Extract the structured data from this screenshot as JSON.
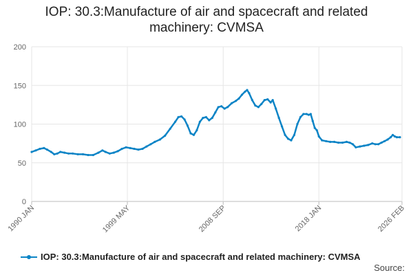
{
  "chart_data": {
    "type": "line",
    "title": "IOP: 30.3:Manufacture of air and spacecraft and related machinery: CVMSA",
    "xlabel": "",
    "ylabel": "",
    "ylim": [
      0,
      200
    ],
    "y_ticks": [
      0,
      50,
      100,
      150,
      200
    ],
    "x_range": [
      1990.0,
      2026.1
    ],
    "x_ticks": [
      {
        "label": "1990 JAN",
        "x": 1990.0
      },
      {
        "label": "1999 MAY",
        "x": 1999.33
      },
      {
        "label": "2008 SEP",
        "x": 2008.67
      },
      {
        "label": "2018 JAN",
        "x": 2018.0
      },
      {
        "label": "2026 FEB",
        "x": 2026.1
      }
    ],
    "grid": true,
    "legend": "bottom",
    "series": [
      {
        "name": "IOP: 30.3:Manufacture of air and spacecraft and related machinery: CVMSA",
        "color": "#0c84c6",
        "points": [
          [
            1990.0,
            64
          ],
          [
            1990.4,
            66
          ],
          [
            1990.8,
            68
          ],
          [
            1991.2,
            69
          ],
          [
            1991.5,
            67
          ],
          [
            1991.9,
            64
          ],
          [
            1992.2,
            61
          ],
          [
            1992.5,
            62
          ],
          [
            1992.8,
            64
          ],
          [
            1993.2,
            63
          ],
          [
            1993.6,
            62
          ],
          [
            1994.0,
            62
          ],
          [
            1994.5,
            61
          ],
          [
            1995.0,
            61
          ],
          [
            1995.5,
            60
          ],
          [
            1996.0,
            60
          ],
          [
            1996.5,
            63
          ],
          [
            1996.9,
            66
          ],
          [
            1997.2,
            64
          ],
          [
            1997.6,
            62
          ],
          [
            1998.0,
            63
          ],
          [
            1998.4,
            65
          ],
          [
            1998.8,
            68
          ],
          [
            1999.2,
            70
          ],
          [
            1999.6,
            69
          ],
          [
            2000.0,
            68
          ],
          [
            2000.4,
            67
          ],
          [
            2000.8,
            68
          ],
          [
            2001.2,
            71
          ],
          [
            2001.6,
            74
          ],
          [
            2002.0,
            77
          ],
          [
            2002.5,
            80
          ],
          [
            2003.0,
            85
          ],
          [
            2003.5,
            94
          ],
          [
            2004.0,
            103
          ],
          [
            2004.3,
            109
          ],
          [
            2004.6,
            110
          ],
          [
            2004.9,
            106
          ],
          [
            2005.2,
            98
          ],
          [
            2005.5,
            88
          ],
          [
            2005.8,
            86
          ],
          [
            2006.1,
            92
          ],
          [
            2006.4,
            103
          ],
          [
            2006.7,
            108
          ],
          [
            2007.0,
            109
          ],
          [
            2007.3,
            105
          ],
          [
            2007.6,
            108
          ],
          [
            2007.9,
            115
          ],
          [
            2008.2,
            122
          ],
          [
            2008.5,
            123
          ],
          [
            2008.8,
            120
          ],
          [
            2009.1,
            122
          ],
          [
            2009.5,
            127
          ],
          [
            2009.9,
            130
          ],
          [
            2010.2,
            133
          ],
          [
            2010.5,
            138
          ],
          [
            2010.8,
            142
          ],
          [
            2011.0,
            144
          ],
          [
            2011.2,
            140
          ],
          [
            2011.5,
            131
          ],
          [
            2011.8,
            124
          ],
          [
            2012.1,
            122
          ],
          [
            2012.4,
            126
          ],
          [
            2012.7,
            131
          ],
          [
            2013.0,
            132
          ],
          [
            2013.3,
            128
          ],
          [
            2013.5,
            131
          ],
          [
            2013.8,
            120
          ],
          [
            2014.1,
            108
          ],
          [
            2014.4,
            97
          ],
          [
            2014.7,
            86
          ],
          [
            2015.0,
            81
          ],
          [
            2015.3,
            79
          ],
          [
            2015.6,
            86
          ],
          [
            2015.9,
            100
          ],
          [
            2016.2,
            109
          ],
          [
            2016.5,
            113
          ],
          [
            2016.8,
            113
          ],
          [
            2017.0,
            112
          ],
          [
            2017.2,
            113
          ],
          [
            2017.4,
            104
          ],
          [
            2017.6,
            95
          ],
          [
            2017.8,
            92
          ],
          [
            2018.0,
            84
          ],
          [
            2018.3,
            79
          ],
          [
            2018.7,
            78
          ],
          [
            2019.1,
            77
          ],
          [
            2019.5,
            77
          ],
          [
            2019.9,
            76
          ],
          [
            2020.3,
            76
          ],
          [
            2020.7,
            77
          ],
          [
            2021.0,
            76
          ],
          [
            2021.3,
            74
          ],
          [
            2021.6,
            70
          ],
          [
            2022.0,
            71
          ],
          [
            2022.4,
            72
          ],
          [
            2022.8,
            73
          ],
          [
            2023.2,
            75
          ],
          [
            2023.5,
            74
          ],
          [
            2023.8,
            74
          ],
          [
            2024.1,
            76
          ],
          [
            2024.4,
            78
          ],
          [
            2024.7,
            80
          ],
          [
            2025.0,
            83
          ],
          [
            2025.2,
            86
          ],
          [
            2025.4,
            84
          ],
          [
            2025.6,
            83
          ],
          [
            2025.9,
            83
          ]
        ]
      }
    ]
  },
  "legend": {
    "label": "IOP: 30.3:Manufacture of air and spacecraft and related machinery: CVMSA"
  },
  "source_label": "Source:"
}
